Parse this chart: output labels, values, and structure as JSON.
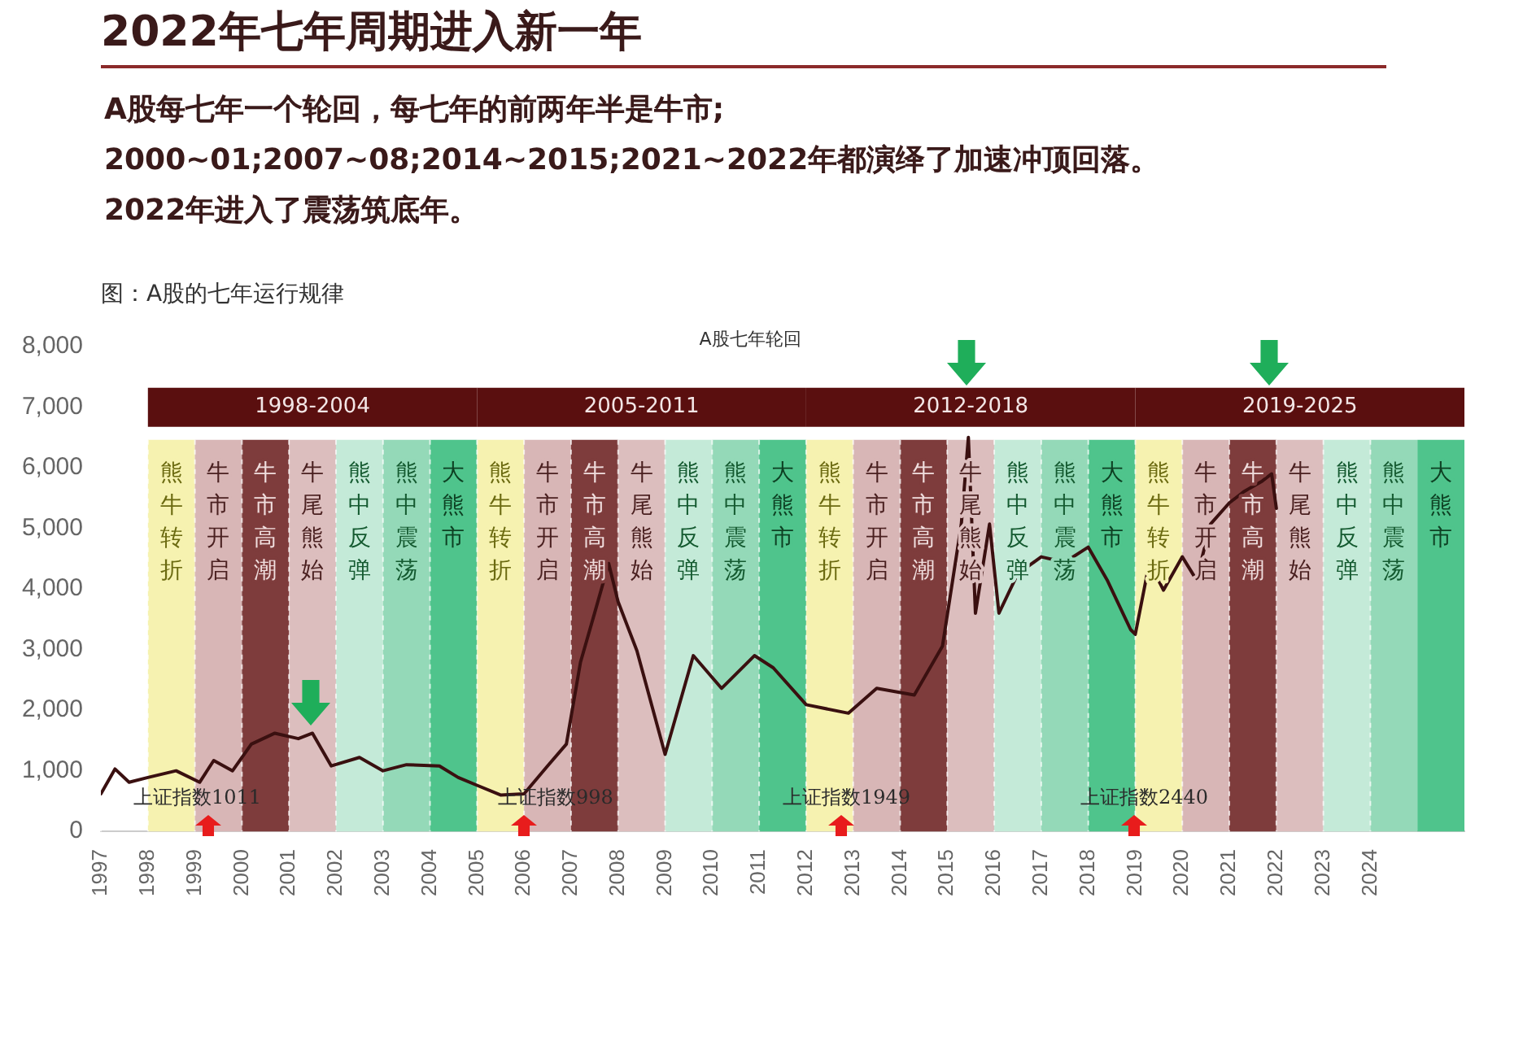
{
  "chart_data": {
    "type": "line",
    "title": "2022年七年周期进入新一年",
    "subtitle": "A股每七年一个轮回，每七年的前两年半是牛市;\n2000~01;2007~08;2014~2015;2021~2022年都演绎了加速冲顶回落。\n2022年进入了震荡筑底年。",
    "x": [
      1997.0,
      1997.3,
      1997.6,
      1998.0,
      1998.6,
      1999.1,
      1999.4,
      1999.8,
      2000.2,
      2000.7,
      2001.2,
      2001.5,
      2001.9,
      2002.5,
      2003.0,
      2003.5,
      2004.2,
      2004.6,
      2005.0,
      2005.5,
      2006.0,
      2006.5,
      2006.9,
      2007.2,
      2007.5,
      2007.8,
      2008.0,
      2008.4,
      2009.0,
      2009.6,
      2010.2,
      2010.9,
      2011.3,
      2012.0,
      2012.9,
      2013.5,
      2014.3,
      2014.9,
      2015.3,
      2015.45,
      2015.6,
      2015.9,
      2016.1,
      2016.5,
      2017.0,
      2017.5,
      2018.0,
      2018.4,
      2018.9,
      2019.0,
      2019.3,
      2019.6,
      2020.0,
      2020.3,
      2020.6,
      2021.0,
      2021.3,
      2021.7,
      2021.9,
      2022.0
    ],
    "series": [
      {
        "color": "#3a1010",
        "values": [
          620,
          1030,
          810,
          890,
          1000,
          810,
          1170,
          1000,
          1440,
          1620,
          1530,
          1620,
          1080,
          1220,
          1000,
          1100,
          1080,
          890,
          760,
          600,
          620,
          1080,
          1440,
          2790,
          3600,
          4420,
          3790,
          2980,
          1270,
          2900,
          2360,
          2900,
          2700,
          2090,
          1950,
          2360,
          2250,
          3060,
          5070,
          6500,
          3600,
          5070,
          3600,
          4250,
          4530,
          4440,
          4690,
          4150,
          3330,
          3250,
          4440,
          3980,
          4530,
          4150,
          5070,
          5420,
          5600,
          5780,
          5900,
          5330
        ]
      }
    ],
    "xlim": [
      1997,
      2026
    ],
    "xticks": [
      1997,
      1998,
      1999,
      2000,
      2001,
      2002,
      2003,
      2004,
      2005,
      2006,
      2007,
      2008,
      2009,
      2010,
      2011,
      2012,
      2013,
      2014,
      2015,
      2016,
      2017,
      2018,
      2019,
      2020,
      2021,
      2022,
      2023,
      2024
    ],
    "ylim": [
      0,
      8000
    ],
    "yticks": [
      {
        "value": 0,
        "label": "0"
      },
      {
        "value": 1000,
        "label": "1,000"
      },
      {
        "value": 2000,
        "label": "2,000"
      },
      {
        "value": 3000,
        "label": "3,000"
      },
      {
        "value": 4000,
        "label": "4,000"
      },
      {
        "value": 5000,
        "label": "5,000"
      },
      {
        "value": 6000,
        "label": "6,000"
      },
      {
        "value": 7000,
        "label": "7,000"
      },
      {
        "value": 8000,
        "label": "8,000"
      }
    ],
    "grid": "x",
    "legend": false,
    "marker": "none",
    "line_style": "solid",
    "bands": [
      {
        "axis": "x",
        "from": 1998,
        "to": 2005,
        "label": "1998-2004",
        "color": "#5a0f0f"
      },
      {
        "axis": "x",
        "from": 2005,
        "to": 2012,
        "label": "2005-2011",
        "color": "#5a0f0f"
      },
      {
        "axis": "x",
        "from": 2012,
        "to": 2019,
        "label": "2012-2018",
        "color": "#5a0f0f"
      },
      {
        "axis": "x",
        "from": 2019,
        "to": 2026,
        "label": "2019-2025",
        "color": "#5a0f0f"
      },
      {
        "axis": "x",
        "from": 1998,
        "to": 1999,
        "label": "熊牛转折",
        "color": "#f6f2b0"
      },
      {
        "axis": "x",
        "from": 1999,
        "to": 2000,
        "label": "牛市开启",
        "color": "#d8b6b6"
      },
      {
        "axis": "x",
        "from": 2000,
        "to": 2001,
        "label": "牛市高潮",
        "color": "#7e3c3c"
      },
      {
        "axis": "x",
        "from": 2001,
        "to": 2002,
        "label": "牛尾熊始",
        "color": "#dcbebe"
      },
      {
        "axis": "x",
        "from": 2002,
        "to": 2003,
        "label": "熊中反弹",
        "color": "#c4ead8"
      },
      {
        "axis": "x",
        "from": 2003,
        "to": 2004,
        "label": "熊中震荡",
        "color": "#94d9b8"
      },
      {
        "axis": "x",
        "from": 2004,
        "to": 2005,
        "label": "大熊市",
        "color": "#4fc48c"
      },
      {
        "axis": "x",
        "from": 2005,
        "to": 2006,
        "label": "熊牛转折",
        "color": "#f6f2b0"
      },
      {
        "axis": "x",
        "from": 2006,
        "to": 2007,
        "label": "牛市开启",
        "color": "#d8b6b6"
      },
      {
        "axis": "x",
        "from": 2007,
        "to": 2008,
        "label": "牛市高潮",
        "color": "#7e3c3c"
      },
      {
        "axis": "x",
        "from": 2008,
        "to": 2009,
        "label": "牛尾熊始",
        "color": "#dcbebe"
      },
      {
        "axis": "x",
        "from": 2009,
        "to": 2010,
        "label": "熊中反弹",
        "color": "#c4ead8"
      },
      {
        "axis": "x",
        "from": 2010,
        "to": 2011,
        "label": "熊中震荡",
        "color": "#94d9b8"
      },
      {
        "axis": "x",
        "from": 2011,
        "to": 2012,
        "label": "大熊市",
        "color": "#4fc48c"
      },
      {
        "axis": "x",
        "from": 2012,
        "to": 2013,
        "label": "熊牛转折",
        "color": "#f6f2b0"
      },
      {
        "axis": "x",
        "from": 2013,
        "to": 2014,
        "label": "牛市开启",
        "color": "#d8b6b6"
      },
      {
        "axis": "x",
        "from": 2014,
        "to": 2015,
        "label": "牛市高潮",
        "color": "#7e3c3c"
      },
      {
        "axis": "x",
        "from": 2015,
        "to": 2016,
        "label": "牛尾熊始",
        "color": "#dcbebe"
      },
      {
        "axis": "x",
        "from": 2016,
        "to": 2017,
        "label": "熊中反弹",
        "color": "#c4ead8"
      },
      {
        "axis": "x",
        "from": 2017,
        "to": 2018,
        "label": "熊中震荡",
        "color": "#94d9b8"
      },
      {
        "axis": "x",
        "from": 2018,
        "to": 2019,
        "label": "大熊市",
        "color": "#4fc48c"
      },
      {
        "axis": "x",
        "from": 2019,
        "to": 2020,
        "label": "熊牛转折",
        "color": "#f6f2b0"
      },
      {
        "axis": "x",
        "from": 2020,
        "to": 2021,
        "label": "牛市开启",
        "color": "#d8b6b6"
      },
      {
        "axis": "x",
        "from": 2021,
        "to": 2022,
        "label": "牛市高潮",
        "color": "#7e3c3c"
      },
      {
        "axis": "x",
        "from": 2022,
        "to": 2023,
        "label": "牛尾熊始",
        "color": "#dcbebe"
      },
      {
        "axis": "x",
        "from": 2023,
        "to": 2024,
        "label": "熊中反弹",
        "color": "#c4ead8"
      },
      {
        "axis": "x",
        "from": 2024,
        "to": 2025,
        "label": "熊中震荡",
        "color": "#94d9b8"
      },
      {
        "axis": "x",
        "from": 2025,
        "to": 2026,
        "label": "大熊市",
        "color": "#4fc48c"
      }
    ],
    "annotations": [
      "图：A股的七年运行规律",
      "A股七年轮回",
      "上证指数1011",
      "上证指数998",
      "上证指数1949",
      "上证指数2440"
    ]
  }
}
